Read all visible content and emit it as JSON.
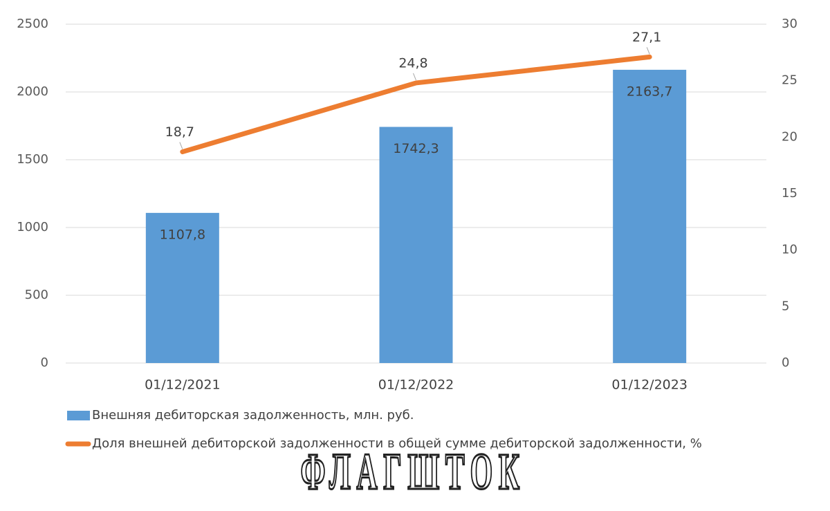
{
  "chart_data": {
    "type": "bar",
    "categories": [
      "01/12/2021",
      "01/12/2022",
      "01/12/2023"
    ],
    "series": [
      {
        "name": "Внешняя дебиторская задолженность, млн. руб.",
        "type": "bar",
        "color": "#5b9bd5",
        "values": [
          1107.8,
          1742.3,
          2163.7
        ],
        "value_labels": [
          "1107,8",
          "1742,3",
          "2163,7"
        ]
      },
      {
        "name": "Доля внешней дебиторской задолженности в общей сумме дебиторской задолженности, %",
        "type": "line",
        "axis": "y2",
        "color": "#ed7d31",
        "values": [
          18.7,
          24.8,
          27.1
        ],
        "value_labels": [
          "18,7",
          "24,8",
          "27,1"
        ]
      }
    ],
    "ylim": [
      0,
      2500
    ],
    "yticks": [
      0,
      500,
      1000,
      1500,
      2000,
      2500
    ],
    "y2lim": [
      0,
      30
    ],
    "y2ticks": [
      0,
      5,
      10,
      15,
      20,
      25,
      30
    ],
    "grid": true,
    "legend": "bottom",
    "watermark": "ФЛАГШТОК"
  }
}
